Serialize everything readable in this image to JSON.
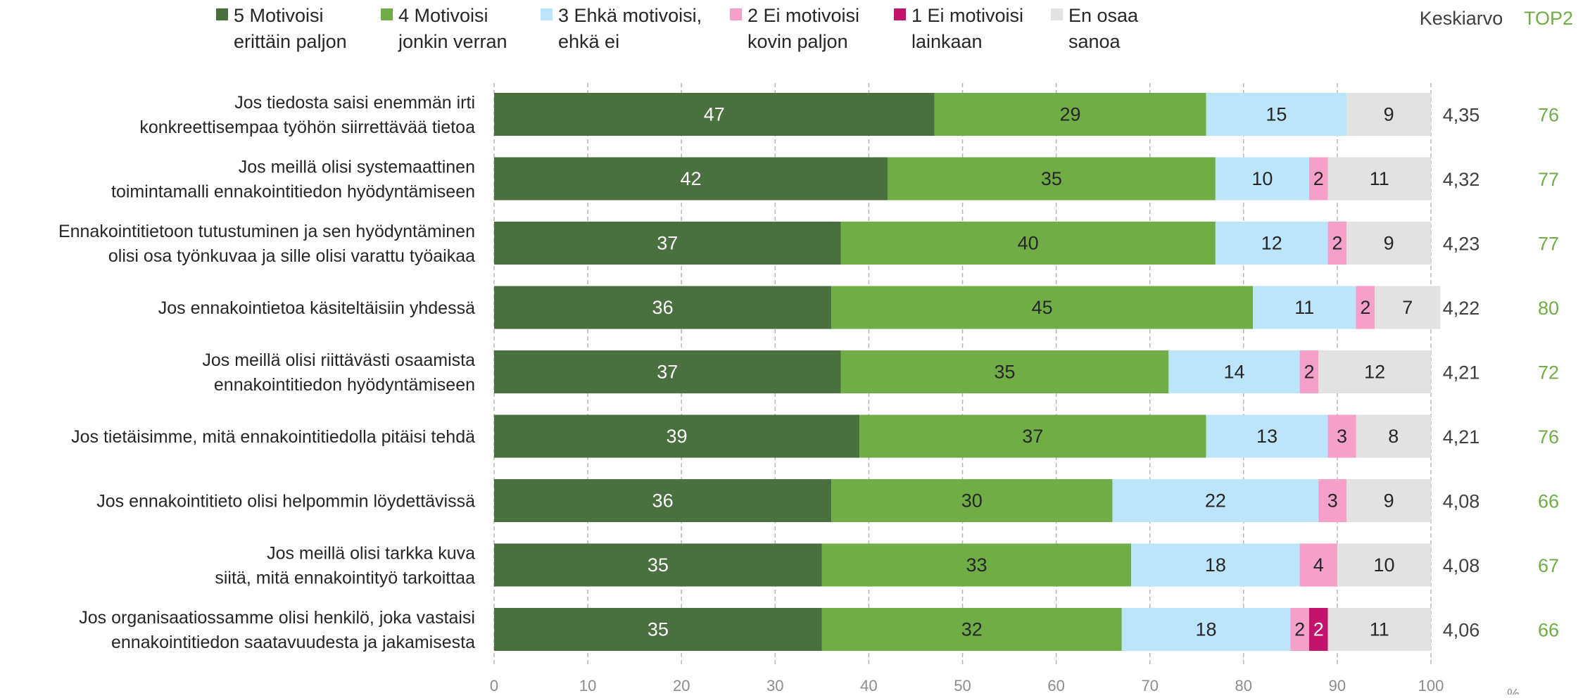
{
  "chart_data": {
    "type": "bar",
    "orientation": "horizontal",
    "stacked": true,
    "title": "",
    "xlabel": "",
    "unit_label": "%",
    "xlim": [
      0,
      100
    ],
    "x_ticks": [
      "0",
      "10",
      "20",
      "30",
      "40",
      "50",
      "60",
      "70",
      "80",
      "90",
      "100"
    ],
    "grid": true,
    "legend_position": "top",
    "categories": [
      [
        "Jos tiedosta saisi enemmän irti",
        "konkreettisempaa työhön siirrettävää tietoa"
      ],
      [
        "Jos meillä olisi systemaattinen",
        "toimintamalli ennakointitiedon hyödyntämiseen"
      ],
      [
        "Ennakointitietoon tutustuminen ja sen hyödyntäminen",
        "olisi osa työnkuvaa ja sille olisi varattu työaikaa"
      ],
      [
        "Jos ennakointietoa käsiteltäisiin yhdessä"
      ],
      [
        "Jos meillä olisi riittävästi osaamista",
        "ennakointitiedon hyödyntämiseen"
      ],
      [
        "Jos tietäisimme, mitä ennakointitiedolla pitäisi tehdä"
      ],
      [
        "Jos ennakointitieto olisi helpommin löydettävissä"
      ],
      [
        "Jos meillä olisi tarkka kuva",
        "siitä, mitä ennakointityö tarkoittaa"
      ],
      [
        "Jos organisaatiossamme olisi henkilö, joka vastaisi",
        "ennakointitiedon saatavuudesta ja jakamisesta"
      ]
    ],
    "series": [
      {
        "name": [
          "5 Motivoisi",
          "erittäin paljon"
        ],
        "color": "#4a7040",
        "label_color": "#ffffff",
        "values": [
          47,
          42,
          37,
          36,
          37,
          39,
          36,
          35,
          35
        ]
      },
      {
        "name": [
          "4 Motivoisi",
          "jonkin verran"
        ],
        "color": "#70ad47",
        "label_color": "#262626",
        "values": [
          29,
          35,
          40,
          45,
          35,
          37,
          30,
          33,
          32
        ]
      },
      {
        "name": [
          "3 Ehkä motivoisi,",
          "ehkä ei"
        ],
        "color": "#bde5fa",
        "label_color": "#262626",
        "values": [
          15,
          10,
          12,
          11,
          14,
          13,
          22,
          18,
          18
        ]
      },
      {
        "name": [
          "2 Ei motivoisi",
          "kovin paljon"
        ],
        "color": "#f4a0c8",
        "label_color": "#262626",
        "values": [
          0,
          2,
          2,
          2,
          2,
          3,
          3,
          4,
          2
        ]
      },
      {
        "name": [
          "1 Ei motivoisi",
          "lainkaan"
        ],
        "color": "#c0156a",
        "label_color": "#ffffff",
        "values": [
          0,
          0,
          0,
          0,
          0,
          0,
          0,
          0,
          2
        ]
      },
      {
        "name": [
          "En osaa",
          "sanoa"
        ],
        "color": "#e2e2e2",
        "label_color": "#262626",
        "values": [
          9,
          11,
          9,
          7,
          12,
          8,
          9,
          10,
          11
        ]
      }
    ],
    "extra_columns": [
      {
        "header": "Keskiarvo",
        "color": "#404040",
        "values": [
          "4,35",
          "4,32",
          "4,23",
          "4,22",
          "4,21",
          "4,21",
          "4,08",
          "4,08",
          "4,06"
        ]
      },
      {
        "header": "TOP2",
        "color": "#70ad47",
        "values": [
          "76",
          "77",
          "77",
          "80",
          "72",
          "76",
          "66",
          "67",
          "66"
        ]
      }
    ]
  }
}
